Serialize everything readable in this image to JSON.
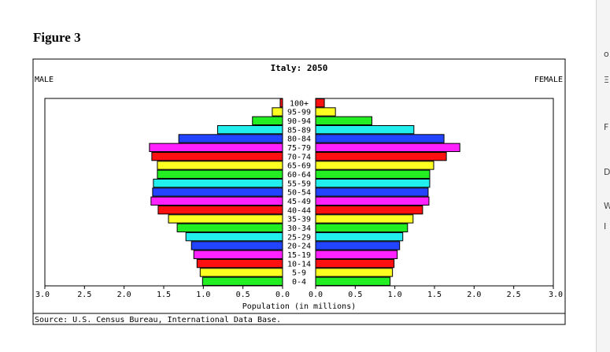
{
  "figure_label": "Figure 3",
  "edge_glyphs": [
    "o",
    "Ξ",
    "F",
    "D",
    "W",
    "I"
  ],
  "chart_data": {
    "type": "bar",
    "orientation": "horizontal",
    "title": "Italy: 2050",
    "left_label": "MALE",
    "right_label": "FEMALE",
    "xlabel": "Population (in millions)",
    "source": "Source: U.S. Census Bureau, International Data Base.",
    "xlim": [
      0,
      3.0
    ],
    "x_ticks": [
      "3.0",
      "2.5",
      "2.0",
      "1.5",
      "1.0",
      "0.5",
      "0.0",
      "0.0",
      "0.5",
      "1.0",
      "1.5",
      "2.0",
      "2.5",
      "3.0"
    ],
    "categories": [
      "100+",
      "95-99",
      "90-94",
      "85-89",
      "80-84",
      "75-79",
      "70-74",
      "65-69",
      "60-64",
      "55-59",
      "50-54",
      "45-49",
      "40-44",
      "35-39",
      "30-34",
      "25-29",
      "20-24",
      "15-19",
      "10-14",
      "5-9",
      "0-4"
    ],
    "series": [
      {
        "name": "MALE",
        "values": [
          0.03,
          0.13,
          0.38,
          0.82,
          1.31,
          1.68,
          1.65,
          1.58,
          1.58,
          1.63,
          1.64,
          1.66,
          1.57,
          1.44,
          1.33,
          1.22,
          1.15,
          1.12,
          1.08,
          1.04,
          1.01
        ]
      },
      {
        "name": "FEMALE",
        "values": [
          0.11,
          0.25,
          0.71,
          1.24,
          1.62,
          1.82,
          1.65,
          1.49,
          1.44,
          1.44,
          1.42,
          1.43,
          1.35,
          1.23,
          1.16,
          1.1,
          1.06,
          1.03,
          0.99,
          0.97,
          0.94
        ]
      }
    ],
    "bar_colors": [
      "#ff1010",
      "#ffff22",
      "#22ee22",
      "#22eeee",
      "#2244ff",
      "#ff22ff"
    ],
    "legend": "none",
    "grid": false
  }
}
